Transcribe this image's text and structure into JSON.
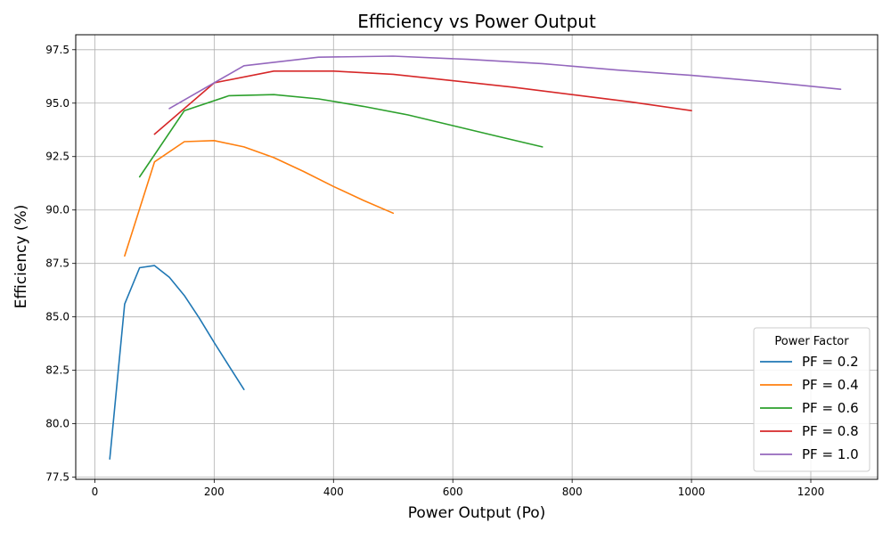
{
  "chart_data": {
    "type": "line",
    "title": "Efficiency vs Power Output",
    "xlabel": "Power Output (Po)",
    "ylabel": "Efficiency (%)",
    "xlim": [
      -32,
      1312
    ],
    "ylim": [
      77.4,
      98.2
    ],
    "xticks": [
      0,
      200,
      400,
      600,
      800,
      1000,
      1200
    ],
    "yticks": [
      77.5,
      80.0,
      82.5,
      85.0,
      87.5,
      90.0,
      92.5,
      95.0,
      97.5
    ],
    "grid": true,
    "legend": {
      "title": "Power Factor",
      "placement": "lower-right"
    },
    "series": [
      {
        "name": "PF = 0.2",
        "color": "#1f77b4",
        "x": [
          25,
          50,
          75,
          100,
          125,
          150,
          175,
          200,
          225,
          250
        ],
        "y": [
          78.35,
          85.6,
          87.3,
          87.4,
          86.85,
          86.0,
          84.95,
          83.8,
          82.7,
          81.6
        ]
      },
      {
        "name": "PF = 0.4",
        "color": "#ff7f0e",
        "x": [
          50,
          100,
          150,
          200,
          250,
          300,
          350,
          400,
          450,
          500
        ],
        "y": [
          87.85,
          92.25,
          93.2,
          93.25,
          92.95,
          92.45,
          91.8,
          91.1,
          90.45,
          89.85
        ]
      },
      {
        "name": "PF = 0.6",
        "color": "#2ca02c",
        "x": [
          75,
          150,
          225,
          300,
          375,
          450,
          525,
          600,
          675,
          750
        ],
        "y": [
          91.55,
          94.65,
          95.35,
          95.4,
          95.2,
          94.85,
          94.45,
          93.95,
          93.45,
          92.95
        ]
      },
      {
        "name": "PF = 0.8",
        "color": "#d62728",
        "x": [
          100,
          200,
          300,
          400,
          500,
          600,
          700,
          800,
          900,
          1000
        ],
        "y": [
          93.55,
          95.95,
          96.5,
          96.5,
          96.35,
          96.05,
          95.75,
          95.4,
          95.05,
          94.65
        ]
      },
      {
        "name": "PF = 1.0",
        "color": "#9467bd",
        "x": [
          125,
          250,
          375,
          500,
          625,
          750,
          875,
          1000,
          1125,
          1250
        ],
        "y": [
          94.75,
          96.75,
          97.15,
          97.2,
          97.05,
          96.85,
          96.55,
          96.3,
          96.0,
          95.65
        ]
      }
    ]
  }
}
